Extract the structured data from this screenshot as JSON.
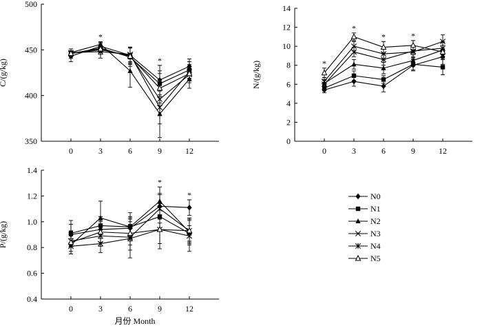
{
  "figure": {
    "x_title": "月份 Month",
    "legend_title": ""
  },
  "legend": [
    {
      "name": "N0",
      "marker": "diamond"
    },
    {
      "name": "N1",
      "marker": "square"
    },
    {
      "name": "N2",
      "marker": "triangle"
    },
    {
      "name": "N3",
      "marker": "x"
    },
    {
      "name": "N4",
      "marker": "asterisk"
    },
    {
      "name": "N5",
      "marker": "triangle-open"
    }
  ],
  "chart_data": [
    {
      "type": "line",
      "title": "",
      "ylabel": "C/(g/kg)",
      "x": [
        0,
        3,
        6,
        9,
        12
      ],
      "xlim": [
        -3,
        15
      ],
      "ylim": [
        350,
        500
      ],
      "yticks": [
        350,
        400,
        450,
        500
      ],
      "significance_marks": [
        3,
        9
      ],
      "series": [
        {
          "name": "N0",
          "values": [
            443,
            454,
            444,
            417,
            432
          ],
          "errors": [
            6,
            4,
            8,
            16,
            8
          ]
        },
        {
          "name": "N1",
          "values": [
            446,
            452,
            442,
            413,
            428
          ],
          "errors": [
            5,
            5,
            10,
            14,
            9
          ]
        },
        {
          "name": "N2",
          "values": [
            447,
            456,
            427,
            380,
            418
          ],
          "errors": [
            4,
            3,
            18,
            26,
            10
          ]
        },
        {
          "name": "N3",
          "values": [
            446,
            450,
            444,
            396,
            423
          ],
          "errors": [
            5,
            5,
            9,
            18,
            9
          ]
        },
        {
          "name": "N4",
          "values": [
            447,
            448,
            445,
            387,
            426
          ],
          "errors": [
            4,
            7,
            8,
            18,
            8
          ]
        },
        {
          "name": "N5",
          "values": [
            446,
            451,
            443,
            408,
            424
          ],
          "errors": [
            5,
            4,
            9,
            16,
            8
          ]
        }
      ]
    },
    {
      "type": "line",
      "title": "",
      "ylabel": "N/(g/kg)",
      "x": [
        0,
        3,
        6,
        9,
        12
      ],
      "xlim": [
        -3,
        15
      ],
      "ylim": [
        0,
        14
      ],
      "yticks": [
        0,
        2,
        4,
        6,
        8,
        10,
        12,
        14
      ],
      "significance_marks": [
        0,
        3,
        6,
        9
      ],
      "series": [
        {
          "name": "N0",
          "values": [
            5.4,
            6.3,
            5.8,
            8.0,
            8.9
          ],
          "errors": [
            0.3,
            0.5,
            0.6,
            0.6,
            0.8
          ]
        },
        {
          "name": "N1",
          "values": [
            5.6,
            6.9,
            6.5,
            8.1,
            7.8
          ],
          "errors": [
            0.3,
            0.5,
            0.4,
            0.6,
            0.8
          ]
        },
        {
          "name": "N2",
          "values": [
            6.1,
            8.1,
            7.7,
            8.5,
            9.6
          ],
          "errors": [
            0.4,
            0.5,
            0.6,
            0.6,
            0.8
          ]
        },
        {
          "name": "N3",
          "values": [
            6.3,
            10.0,
            9.2,
            9.4,
            10.5
          ],
          "errors": [
            0.4,
            0.5,
            0.6,
            0.6,
            0.7
          ]
        },
        {
          "name": "N4",
          "values": [
            6.0,
            9.4,
            8.6,
            9.5,
            9.8
          ],
          "errors": [
            0.4,
            0.5,
            0.6,
            0.6,
            0.7
          ]
        },
        {
          "name": "N5",
          "values": [
            7.2,
            11.0,
            9.9,
            10.1,
            9.4
          ],
          "errors": [
            0.5,
            0.4,
            0.6,
            0.5,
            0.7
          ]
        }
      ]
    },
    {
      "type": "line",
      "title": "",
      "ylabel": "P/(g/kg)",
      "x": [
        0,
        3,
        6,
        9,
        12
      ],
      "xlim": [
        -3,
        15
      ],
      "ylim": [
        0.4,
        1.4
      ],
      "yticks": [
        0.4,
        0.6,
        0.8,
        1.0,
        1.2,
        1.4
      ],
      "significance_marks": [
        9,
        12
      ],
      "series": [
        {
          "name": "N0",
          "values": [
            0.9,
            0.94,
            0.95,
            1.12,
            1.11
          ],
          "errors": [
            0.08,
            0.07,
            0.08,
            0.1,
            0.06
          ]
        },
        {
          "name": "N1",
          "values": [
            0.91,
            0.97,
            0.96,
            1.04,
            0.91
          ],
          "errors": [
            0.1,
            0.07,
            0.08,
            0.1,
            0.06
          ]
        },
        {
          "name": "N2",
          "values": [
            0.82,
            1.03,
            0.96,
            1.16,
            0.92
          ],
          "errors": [
            0.07,
            0.13,
            0.11,
            0.11,
            0.1
          ]
        },
        {
          "name": "N3",
          "values": [
            0.85,
            0.89,
            0.88,
            1.1,
            0.93
          ],
          "errors": [
            0.08,
            0.08,
            0.1,
            0.11,
            0.09
          ]
        },
        {
          "name": "N4",
          "values": [
            0.81,
            0.83,
            0.87,
            0.94,
            0.89
          ],
          "errors": [
            0.06,
            0.07,
            0.15,
            0.11,
            0.12
          ]
        },
        {
          "name": "N5",
          "values": [
            0.84,
            0.92,
            0.91,
            0.94,
            0.93
          ],
          "errors": [
            0.09,
            0.08,
            0.09,
            0.15,
            0.1
          ]
        }
      ]
    }
  ]
}
